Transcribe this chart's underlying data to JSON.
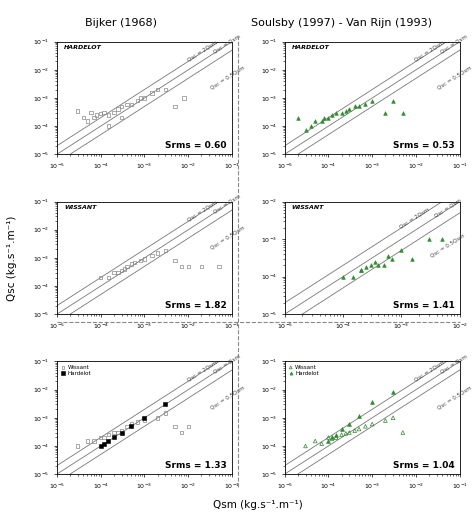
{
  "title_left": "Bijker (1968)",
  "title_right": "Soulsby (1997) - Van Rijn (1993)",
  "xlabel": "Qsm (kg.s⁻¹.m⁻¹)",
  "ylabel": "Qsc (kg.s⁻¹.m⁻¹)",
  "panels": [
    {
      "row": 0,
      "col": 0,
      "site": "HARDELOT",
      "srms": "0.60",
      "xlim": [
        1e-05,
        0.1
      ],
      "ylim": [
        1e-05,
        0.1
      ],
      "color": "gray",
      "marker": "s",
      "filled": false,
      "qsm": [
        3e-05,
        4e-05,
        5e-05,
        6e-05,
        7e-05,
        8e-05,
        0.0001,
        0.00012,
        0.00015,
        0.00015,
        0.0002,
        0.00025,
        0.0003,
        0.0003,
        0.0004,
        0.0005,
        0.0007,
        0.0008,
        0.001,
        0.0015,
        0.002,
        0.003,
        0.005,
        0.008
      ],
      "qsc": [
        0.00035,
        0.0002,
        0.00015,
        0.0003,
        0.0002,
        0.00025,
        0.00028,
        0.0003,
        0.00025,
        0.0001,
        0.0003,
        0.0004,
        0.0005,
        0.0002,
        0.0006,
        0.0006,
        0.0008,
        0.001,
        0.001,
        0.0015,
        0.002,
        0.002,
        0.0005,
        0.001
      ]
    },
    {
      "row": 0,
      "col": 1,
      "site": "HARDELOT",
      "srms": "0.53",
      "xlim": [
        1e-05,
        0.1
      ],
      "ylim": [
        1e-05,
        0.1
      ],
      "color": "green",
      "marker": "^",
      "filled": true,
      "qsm": [
        2e-05,
        3e-05,
        4e-05,
        5e-05,
        7e-05,
        8e-05,
        0.0001,
        0.00012,
        0.00015,
        0.0002,
        0.00025,
        0.0003,
        0.0004,
        0.0005,
        0.0007,
        0.001,
        0.002,
        0.003,
        0.005
      ],
      "qsc": [
        0.0002,
        7e-05,
        0.0001,
        0.00015,
        0.00015,
        0.0002,
        0.0002,
        0.00025,
        0.0003,
        0.0003,
        0.00035,
        0.0004,
        0.0005,
        0.0005,
        0.0006,
        0.0008,
        0.0003,
        0.0008,
        0.0003
      ]
    },
    {
      "row": 1,
      "col": 0,
      "site": "WISSANT",
      "srms": "1.82",
      "xlim": [
        1e-05,
        0.1
      ],
      "ylim": [
        1e-05,
        0.1
      ],
      "color": "gray",
      "marker": "s",
      "filled": false,
      "qsm": [
        0.0001,
        0.00015,
        0.0002,
        0.00025,
        0.0003,
        0.00035,
        0.0004,
        0.0005,
        0.0006,
        0.0008,
        0.001,
        0.0015,
        0.002,
        0.003,
        0.005,
        0.007,
        0.01,
        0.02,
        0.05
      ],
      "qsc": [
        0.0002,
        0.0002,
        0.0003,
        0.0003,
        0.00035,
        0.0004,
        0.0005,
        0.0006,
        0.0007,
        0.0008,
        0.0009,
        0.0012,
        0.0015,
        0.0018,
        0.0008,
        0.0005,
        0.0005,
        0.0005,
        0.0005
      ]
    },
    {
      "row": 1,
      "col": 1,
      "site": "WISSANT",
      "srms": "1.41",
      "xlim": [
        1e-05,
        0.01
      ],
      "ylim": [
        1e-05,
        0.01
      ],
      "color": "green",
      "marker": "^",
      "filled": true,
      "qsm": [
        0.0001,
        0.00015,
        0.0002,
        0.00025,
        0.0003,
        0.0004,
        0.0005,
        0.0007,
        0.001,
        0.0015,
        0.003,
        0.005,
        0.0002,
        0.00035,
        0.0006
      ],
      "qsc": [
        0.0001,
        0.0001,
        0.00015,
        0.00018,
        0.0002,
        0.0002,
        0.0002,
        0.0003,
        0.0005,
        0.0003,
        0.001,
        0.001,
        0.00015,
        0.00025,
        0.00035
      ]
    },
    {
      "row": 2,
      "col": 0,
      "site": "",
      "srms": "1.33",
      "xlim": [
        1e-05,
        0.1
      ],
      "ylim": [
        1e-05,
        0.1
      ],
      "color": "gray",
      "marker": "s",
      "filled": false,
      "wissant_qsm": [
        3e-05,
        5e-05,
        7e-05,
        0.0001,
        0.00012,
        0.00015,
        0.0002,
        0.00025,
        0.0003,
        0.0004,
        0.0005,
        0.0007,
        0.001,
        0.002,
        0.003,
        0.005,
        0.007,
        0.01
      ],
      "wissant_qsc": [
        0.0001,
        0.00015,
        0.00015,
        0.0002,
        0.0002,
        0.00025,
        0.0003,
        0.0003,
        0.00035,
        0.0005,
        0.0006,
        0.0007,
        0.0008,
        0.001,
        0.0015,
        0.0005,
        0.0003,
        0.0005
      ],
      "hardelot_qsm": [
        0.0001,
        0.00012,
        0.00015,
        0.0002,
        0.0003,
        0.0005,
        0.001,
        0.003
      ],
      "hardelot_qsc": [
        0.0001,
        0.00012,
        0.00015,
        0.0002,
        0.0003,
        0.0005,
        0.001,
        0.003
      ]
    },
    {
      "row": 2,
      "col": 1,
      "site": "",
      "srms": "1.04",
      "xlim": [
        1e-05,
        0.1
      ],
      "ylim": [
        1e-05,
        0.1
      ],
      "color": "green",
      "marker": "^",
      "filled": true,
      "wissant_qsm": [
        3e-05,
        5e-05,
        7e-05,
        0.0001,
        0.00012,
        0.00015,
        0.0002,
        0.00025,
        0.0003,
        0.0004,
        0.0005,
        0.0007,
        0.001,
        0.002,
        0.003,
        0.005
      ],
      "wissant_qsc": [
        0.0001,
        0.00015,
        0.00012,
        0.0002,
        0.00018,
        0.0002,
        0.00025,
        0.00028,
        0.0003,
        0.00035,
        0.0004,
        0.0005,
        0.0006,
        0.0008,
        0.001,
        0.0003
      ],
      "hardelot_qsm": [
        0.0001,
        0.00012,
        0.00015,
        0.0002,
        0.0003,
        0.0005,
        0.001,
        0.003
      ],
      "hardelot_qsc": [
        0.00015,
        0.0002,
        0.00025,
        0.0004,
        0.0006,
        0.0012,
        0.0035,
        0.008
      ]
    }
  ]
}
